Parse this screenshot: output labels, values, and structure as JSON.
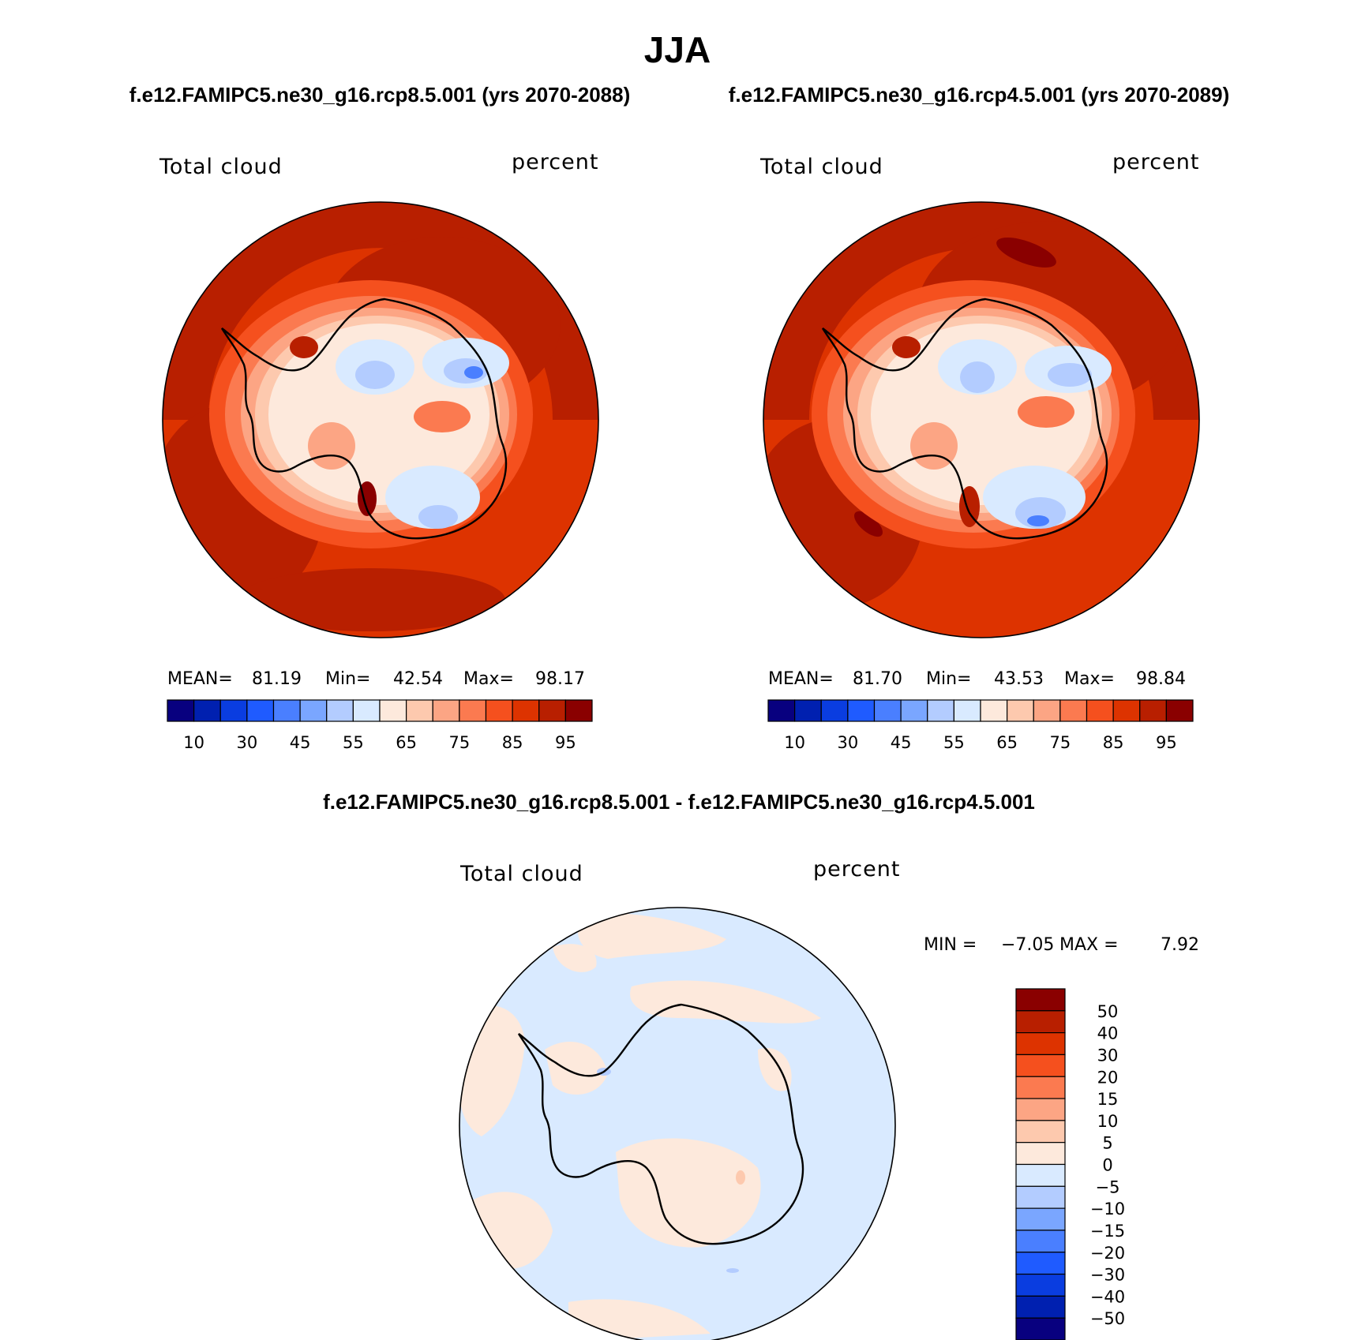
{
  "figure": {
    "title": "JJA",
    "difference_title": "f.e12.FAMIPC5.ne30_g16.rcp8.5.001 - f.e12.FAMIPC5.ne30_g16.rcp4.5.001"
  },
  "colors": {
    "absolute_scale": [
      "#08007f",
      "#0020b0",
      "#0a3de0",
      "#1f5bff",
      "#4a7fff",
      "#7aa6ff",
      "#b3ccff",
      "#d9eaff",
      "#fde9dc",
      "#fdc9ae",
      "#fca584",
      "#fb7a50",
      "#f5501e",
      "#dd3300",
      "#b81f00",
      "#8a0000"
    ],
    "difference_scale": [
      "#8a0000",
      "#b81f00",
      "#dd3300",
      "#f5501e",
      "#fb7a50",
      "#fca584",
      "#fdc9ae",
      "#fde9dc",
      "#d9eaff",
      "#b3ccff",
      "#7aa6ff",
      "#4a7fff",
      "#1f5bff",
      "#0a3de0",
      "#0020b0",
      "#08007f"
    ]
  },
  "panels": [
    {
      "id": "rcp85",
      "case": "f.e12.FAMIPC5.ne30_g16.rcp8.5.001 (yrs 2070-2088)",
      "variable": "Total cloud",
      "units": "percent",
      "mean_label": "MEAN=",
      "mean": "81.19",
      "min_label": "Min=",
      "min": "42.54",
      "max_label": "Max=",
      "max": "98.17",
      "ticks": [
        "10",
        "30",
        "45",
        "55",
        "65",
        "75",
        "85",
        "95"
      ]
    },
    {
      "id": "rcp45",
      "case": "f.e12.FAMIPC5.ne30_g16.rcp4.5.001 (yrs 2070-2089)",
      "variable": "Total cloud",
      "units": "percent",
      "mean_label": "MEAN=",
      "mean": "81.70",
      "min_label": "Min=",
      "min": "43.53",
      "max_label": "Max=",
      "max": "98.84",
      "ticks": [
        "10",
        "30",
        "45",
        "55",
        "65",
        "75",
        "85",
        "95"
      ]
    }
  ],
  "difference": {
    "variable": "Total cloud",
    "units": "percent",
    "min_label": "MIN =",
    "min": "−7.05",
    "max_label": "MAX =",
    "max": "7.92",
    "ticks": [
      "50",
      "40",
      "30",
      "20",
      "15",
      "10",
      "5",
      "0",
      "−5",
      "−10",
      "−15",
      "−20",
      "−30",
      "−40",
      "−50"
    ]
  }
}
